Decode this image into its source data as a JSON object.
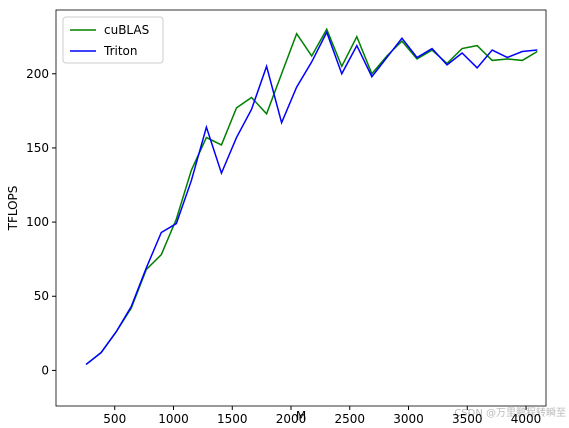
{
  "chart_data": {
    "type": "line",
    "xlabel": "M",
    "ylabel": "TFLOPS",
    "x": [
      256,
      384,
      512,
      640,
      768,
      896,
      1024,
      1152,
      1280,
      1408,
      1536,
      1664,
      1792,
      1920,
      2048,
      2176,
      2304,
      2432,
      2560,
      2688,
      2816,
      2944,
      3072,
      3200,
      3328,
      3456,
      3584,
      3712,
      3840,
      3968,
      4096
    ],
    "series": [
      {
        "name": "cuBLAS",
        "color": "#008000",
        "values": [
          4,
          12,
          26,
          42,
          68,
          78,
          102,
          135,
          157,
          152,
          177,
          184,
          173,
          200,
          227,
          212,
          230,
          205,
          225,
          200,
          212,
          222,
          210,
          216,
          207,
          217,
          219,
          209,
          210,
          209,
          215
        ]
      },
      {
        "name": "Triton",
        "color": "#0000ff",
        "values": [
          4,
          12,
          26,
          43,
          69,
          93,
          99,
          128,
          164,
          133,
          157,
          176,
          205,
          167,
          191,
          208,
          228,
          200,
          219,
          198,
          211,
          224,
          211,
          217,
          206,
          214,
          204,
          216,
          211,
          215,
          216
        ]
      }
    ],
    "xlim": [
      0,
      4170
    ],
    "ylim": [
      -24,
      243
    ],
    "xticks": [
      500,
      1000,
      1500,
      2000,
      2500,
      3000,
      3500,
      4000
    ],
    "yticks": [
      0,
      50,
      100,
      150,
      200
    ],
    "legend": "upper left",
    "watermark": "CSDN @万里鹏程转瞬至"
  }
}
